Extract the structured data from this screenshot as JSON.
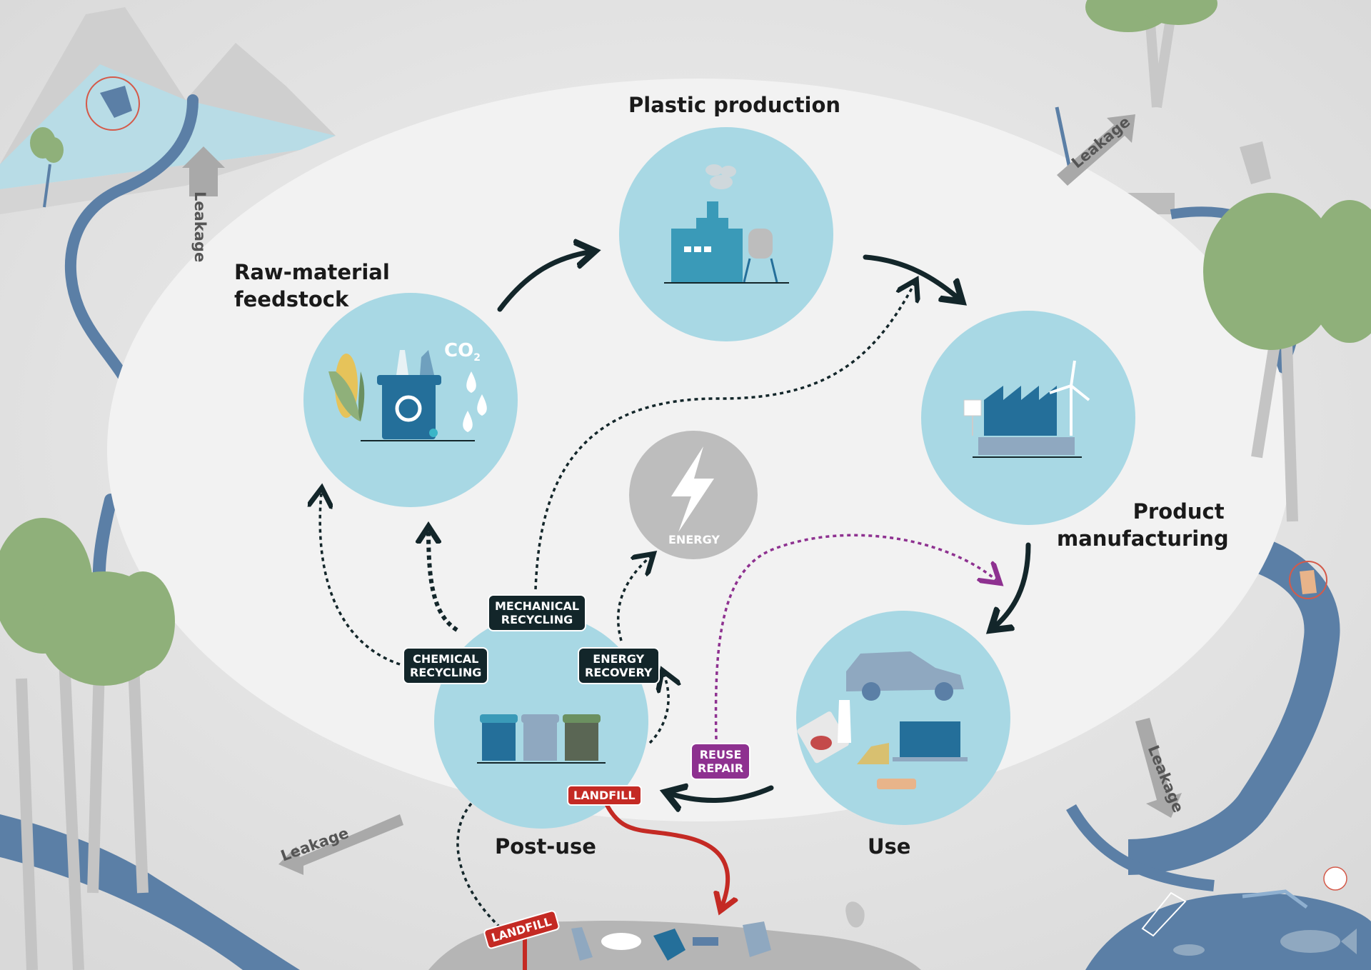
{
  "stages": {
    "raw_material": {
      "line1": "Raw-material",
      "line2": "feedstock"
    },
    "plastic_production": {
      "label": "Plastic production"
    },
    "product_manufacturing": {
      "line1": "Product",
      "line2": "manufacturing"
    },
    "use": {
      "label": "Use"
    },
    "post_use": {
      "label": "Post-use"
    }
  },
  "co2": {
    "main": "CO",
    "sub": "2"
  },
  "energy": {
    "label": "ENERGY"
  },
  "tags": {
    "mechanical_recycling": {
      "line1": "MECHANICAL",
      "line2": "RECYCLING"
    },
    "chemical_recycling": {
      "line1": "CHEMICAL",
      "line2": "RECYCLING"
    },
    "energy_recovery": {
      "line1": "ENERGY",
      "line2": "RECOVERY"
    },
    "reuse_repair": {
      "line1": "REUSE",
      "line2": "REPAIR"
    },
    "landfill": "LANDFILL",
    "landfill_sign": "LANDFILL"
  },
  "leakage": {
    "top_left": "Leakage",
    "top_right": "Leakage",
    "bottom_right": "Leakage",
    "bottom_left": "Leakage"
  },
  "colors": {
    "circle": "#a8d8e4",
    "arrow": "#13262a",
    "reuse": "#8e3190",
    "landfill": "#c42a24",
    "water": "#5b7fa6",
    "tree": "#8fb07a",
    "energy": "#bdbdbd"
  }
}
